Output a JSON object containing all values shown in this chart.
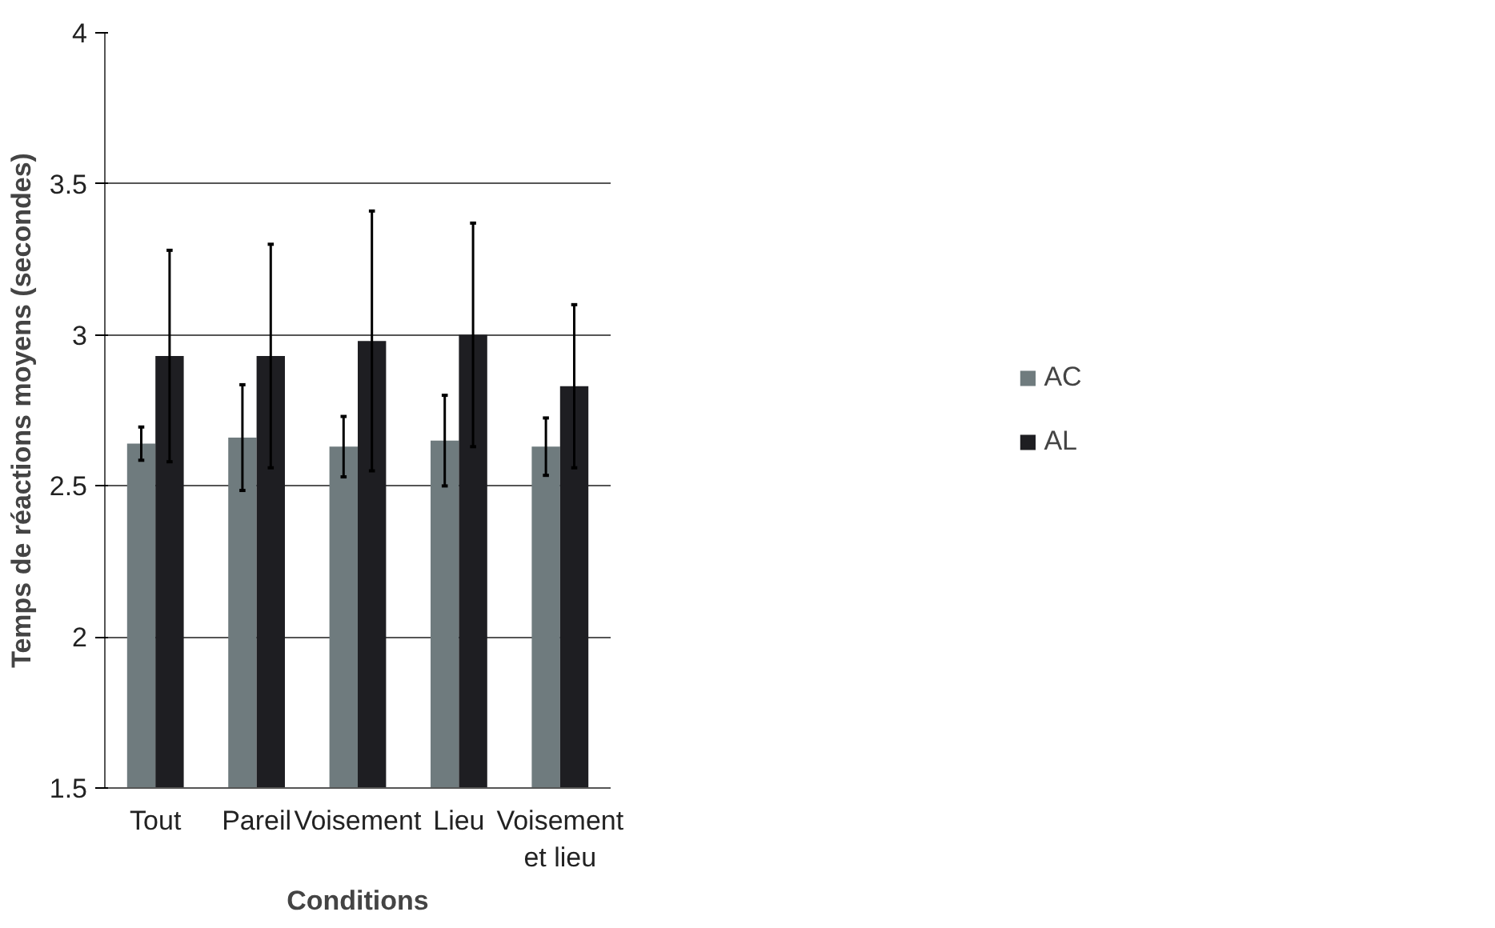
{
  "chart_data": {
    "type": "bar",
    "xlabel": "Conditions",
    "ylabel": "Temps de réactions moyens (secondes)",
    "categories": [
      "Tout",
      "Pareil",
      "Voisement",
      "Lieu",
      "Voisement et lieu"
    ],
    "series": [
      {
        "name": "AC",
        "color": "#6f7b7e",
        "values": [
          2.64,
          2.66,
          2.63,
          2.65,
          2.63
        ],
        "errors": [
          0.055,
          0.175,
          0.1,
          0.15,
          0.095
        ]
      },
      {
        "name": "AL",
        "color": "#1e1e22",
        "values": [
          2.93,
          2.93,
          2.98,
          3.0,
          2.83
        ],
        "errors": [
          0.35,
          0.37,
          0.43,
          0.37,
          0.27
        ]
      }
    ],
    "ylim": [
      1.5,
      4
    ],
    "yticks": [
      1.5,
      2,
      2.5,
      3,
      3.5,
      4
    ],
    "grid": "y",
    "legend": "right"
  }
}
